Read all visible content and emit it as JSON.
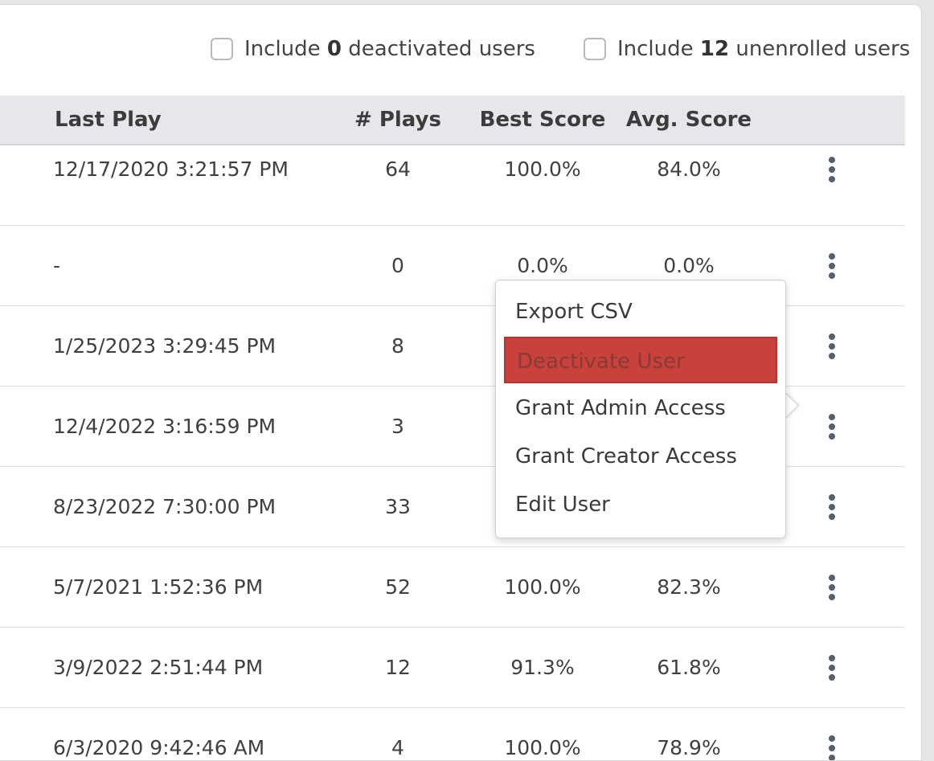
{
  "filters": {
    "deactivated": {
      "prefix": "Include ",
      "count": "0",
      "suffix": " deactivated users"
    },
    "unenrolled": {
      "prefix": "Include ",
      "count": "12",
      "suffix": " unenrolled users"
    }
  },
  "table": {
    "headers": {
      "last_play": "Last Play",
      "plays": "# Plays",
      "best_score": "Best Score",
      "avg_score": "Avg. Score"
    },
    "rows": [
      {
        "last_play": "12/17/2020 3:21:57 PM",
        "plays": "64",
        "best_score": "100.0%",
        "avg_score": "84.0%"
      },
      {
        "last_play": "-",
        "plays": "0",
        "best_score": "0.0%",
        "avg_score": "0.0%"
      },
      {
        "last_play": "1/25/2023 3:29:45 PM",
        "plays": "8",
        "best_score": "",
        "avg_score": ""
      },
      {
        "last_play": "12/4/2022 3:16:59 PM",
        "plays": "3",
        "best_score": "",
        "avg_score": ""
      },
      {
        "last_play": "8/23/2022 7:30:00 PM",
        "plays": "33",
        "best_score": "",
        "avg_score": ""
      },
      {
        "last_play": "5/7/2021 1:52:36 PM",
        "plays": "52",
        "best_score": "100.0%",
        "avg_score": "82.3%"
      },
      {
        "last_play": "3/9/2022 2:51:44 PM",
        "plays": "12",
        "best_score": "91.3%",
        "avg_score": "61.8%"
      },
      {
        "last_play": "6/3/2020 9:42:46 AM",
        "plays": "4",
        "best_score": "100.0%",
        "avg_score": "78.9%"
      }
    ],
    "row_menu_icon": "kebab-vertical-icon"
  },
  "context_menu": {
    "items": [
      {
        "label": "Export CSV"
      },
      {
        "label": "Deactivate User",
        "highlighted": true,
        "highlight_color": "#c8413b"
      },
      {
        "label": "Grant Admin Access"
      },
      {
        "label": "Grant Creator Access"
      },
      {
        "label": "Edit User"
      }
    ]
  },
  "colors": {
    "header_bg": "#e5e7ea",
    "danger": "#c8413b",
    "kebab": "#55606e"
  }
}
